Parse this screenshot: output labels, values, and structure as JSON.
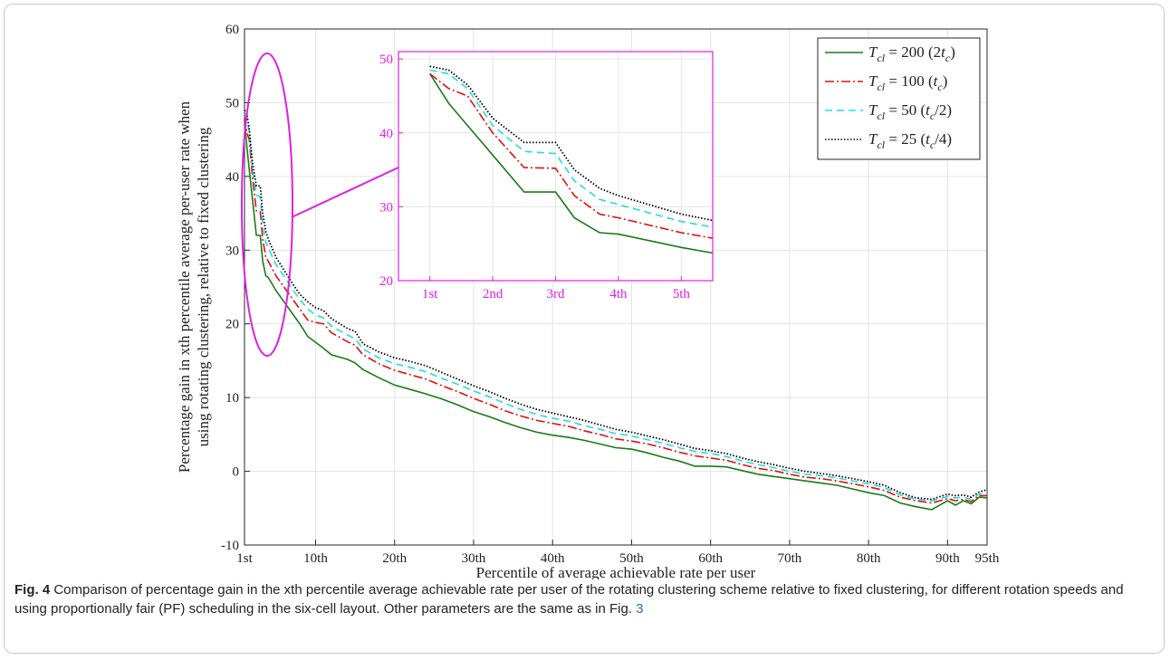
{
  "figure": {
    "caption_label": "Fig. 4",
    "caption_text": " Comparison of percentage gain in the xth percentile average achievable rate per user of the rotating clustering scheme relative to fixed clustering, for different rotation speeds and using proportionally fair (PF) scheduling in the six-cell layout. Other parameters are the same as in Fig. ",
    "caption_ref": "3"
  },
  "colors": {
    "series_200": "#1a7a1a",
    "series_100": "#e01010",
    "series_50": "#22dddd",
    "series_25": "#000000",
    "inset_axes": "#e020e0",
    "callout": "#e020e0"
  },
  "chart_data": {
    "type": "line",
    "xlabel": "Percentile of average achievable rate per user",
    "ylabel_line1": "Percentage gain in xth percentile average per-user rate when",
    "ylabel_line2": "using rotating clustering, relative to fixed clustering",
    "xlim": [
      1,
      95
    ],
    "ylim": [
      -10,
      60
    ],
    "grid": true,
    "legend_position": "top-right",
    "xticks": [
      1,
      10,
      20,
      30,
      40,
      50,
      60,
      70,
      80,
      90,
      95
    ],
    "xtick_labels": [
      "1st",
      "10th",
      "20th",
      "30th",
      "40th",
      "50th",
      "60th",
      "70th",
      "80th",
      "90th",
      "95th"
    ],
    "yticks": [
      -10,
      0,
      10,
      20,
      30,
      40,
      50,
      60
    ],
    "ytick_labels": [
      "-10",
      "0",
      "10",
      "20",
      "30",
      "40",
      "50",
      "60"
    ],
    "series": [
      {
        "id": "s200",
        "name_T": "T",
        "name_sub": "cl",
        "name_mid": " = 200 (2",
        "name_t": "t",
        "name_t_sub": "c",
        "name_end": ")",
        "color": "#1a7a1a",
        "dash": "solid",
        "x": [
          1,
          1.3,
          1.6,
          2,
          2.5,
          3,
          3.3,
          3.7,
          4,
          5,
          6,
          7,
          8,
          9,
          10,
          11,
          12,
          14,
          15,
          16,
          18,
          20,
          22,
          24,
          26,
          28,
          30,
          32,
          34,
          36,
          38,
          40,
          42,
          44,
          46,
          48,
          50,
          52,
          54,
          56,
          58,
          60,
          62,
          64,
          66,
          68,
          70,
          72,
          74,
          76,
          78,
          80,
          82,
          84,
          86,
          88,
          90,
          91,
          92,
          93,
          94,
          95
        ],
        "y": [
          48,
          44,
          41,
          37,
          32,
          32,
          28.5,
          26.5,
          26.3,
          24.5,
          23,
          21.5,
          20,
          18.3,
          17.5,
          16.7,
          15.8,
          15.2,
          14.7,
          13.8,
          12.7,
          11.7,
          11.1,
          10.5,
          9.8,
          9,
          8.1,
          7.4,
          6.6,
          5.9,
          5.3,
          4.9,
          4.6,
          4.2,
          3.7,
          3.2,
          3,
          2.5,
          1.9,
          1.4,
          0.7,
          0.7,
          0.6,
          0.1,
          -0.4,
          -0.7,
          -1,
          -1.3,
          -1.6,
          -1.9,
          -2.4,
          -2.9,
          -3.3,
          -4.3,
          -4.8,
          -5.2,
          -4,
          -4.6,
          -4,
          -4.4,
          -3.5,
          -3.6
        ]
      },
      {
        "id": "s100",
        "name_T": "T",
        "name_sub": "cl",
        "name_mid": " = 100 (",
        "name_t": "t",
        "name_t_sub": "c",
        "name_end": ")",
        "color": "#e01010",
        "dash": "10 3 2 3",
        "x": [
          1,
          1.3,
          1.6,
          2,
          2.5,
          3,
          3.3,
          3.7,
          4,
          5,
          6,
          7,
          8,
          9,
          10,
          11,
          12,
          14,
          15,
          16,
          18,
          20,
          22,
          24,
          26,
          28,
          30,
          32,
          34,
          36,
          38,
          40,
          42,
          44,
          46,
          48,
          50,
          52,
          54,
          56,
          58,
          60,
          62,
          64,
          66,
          68,
          70,
          72,
          74,
          76,
          78,
          80,
          82,
          84,
          86,
          88,
          90,
          91,
          92,
          93,
          94,
          95
        ],
        "y": [
          48,
          46,
          45,
          40,
          35.3,
          35.2,
          31.5,
          29,
          28.5,
          26.5,
          25,
          23.5,
          22,
          20.5,
          20.2,
          20,
          18.8,
          17.6,
          17.1,
          15.8,
          14.6,
          13.7,
          13.1,
          12.5,
          11.6,
          10.8,
          9.9,
          9.1,
          8.2,
          7.5,
          6.9,
          6.5,
          6.1,
          5.5,
          5,
          4.4,
          4.1,
          3.7,
          3.2,
          2.6,
          2.1,
          1.8,
          1.5,
          0.9,
          0.4,
          0.1,
          -0.4,
          -0.8,
          -1,
          -1.3,
          -1.7,
          -2.1,
          -2.6,
          -3.5,
          -4,
          -4.3,
          -3.7,
          -4,
          -3.8,
          -4.1,
          -3.3,
          -3.3
        ]
      },
      {
        "id": "s50",
        "name_T": "T",
        "name_sub": "cl",
        "name_mid": " = 50 (",
        "name_t": "t",
        "name_t_sub": "c",
        "name_end": "/2)",
        "color": "#22dddd",
        "dash": "8 5",
        "x": [
          1,
          1.3,
          1.6,
          2,
          2.5,
          3,
          3.3,
          3.7,
          4,
          5,
          6,
          7,
          8,
          9,
          10,
          11,
          12,
          14,
          15,
          16,
          18,
          20,
          22,
          24,
          26,
          28,
          30,
          32,
          34,
          36,
          38,
          40,
          42,
          44,
          46,
          48,
          50,
          52,
          54,
          56,
          58,
          60,
          62,
          64,
          66,
          68,
          70,
          72,
          74,
          76,
          78,
          80,
          82,
          84,
          86,
          88,
          90,
          91,
          92,
          93,
          94,
          95
        ],
        "y": [
          48.5,
          48,
          46,
          41,
          37.5,
          37.2,
          33.5,
          31,
          30.3,
          28,
          26.5,
          24.8,
          23.3,
          22,
          21.2,
          20.8,
          19.7,
          18.5,
          18,
          16.6,
          15.4,
          14.6,
          14.1,
          13.5,
          12.6,
          11.8,
          10.9,
          10.1,
          9.2,
          8.4,
          7.7,
          7.2,
          6.8,
          6.2,
          5.7,
          5.1,
          4.8,
          4.3,
          3.8,
          3.2,
          2.7,
          2.4,
          2,
          1.4,
          0.9,
          0.5,
          0,
          -0.4,
          -0.6,
          -0.9,
          -1.3,
          -1.7,
          -2.2,
          -3.2,
          -3.8,
          -4,
          -3.4,
          -3.6,
          -3.5,
          -3.8,
          -3.1,
          -2.9
        ]
      },
      {
        "id": "s25",
        "name_T": "T",
        "name_sub": "cl",
        "name_mid": " = 25 (",
        "name_t": "t",
        "name_t_sub": "c",
        "name_end": "/4)",
        "color": "#000000",
        "dash": "1.5 2",
        "x": [
          1,
          1.3,
          1.6,
          2,
          2.5,
          3,
          3.3,
          3.7,
          4,
          5,
          6,
          7,
          8,
          9,
          10,
          11,
          12,
          14,
          15,
          16,
          18,
          20,
          22,
          24,
          26,
          28,
          30,
          32,
          34,
          36,
          38,
          40,
          42,
          44,
          46,
          48,
          50,
          52,
          54,
          56,
          58,
          60,
          62,
          64,
          66,
          68,
          70,
          72,
          74,
          76,
          78,
          80,
          82,
          84,
          86,
          88,
          90,
          91,
          92,
          93,
          94,
          95
        ],
        "y": [
          49,
          48.5,
          46.5,
          42,
          38.7,
          38.7,
          35,
          32.5,
          31.5,
          29,
          27.3,
          25.6,
          24,
          23,
          22.2,
          21.8,
          20.7,
          19.4,
          19,
          17.3,
          16.2,
          15.4,
          14.9,
          14.3,
          13.4,
          12.5,
          11.6,
          10.8,
          9.9,
          9.1,
          8.4,
          7.9,
          7.4,
          6.9,
          6.3,
          5.7,
          5.3,
          4.8,
          4.3,
          3.7,
          3.1,
          2.8,
          2.4,
          1.8,
          1.3,
          0.9,
          0.4,
          0,
          -0.3,
          -0.6,
          -1,
          -1.4,
          -1.9,
          -2.9,
          -3.6,
          -3.8,
          -3.1,
          -3.3,
          -3.2,
          -3.5,
          -2.8,
          -2.5
        ]
      }
    ],
    "inset": {
      "xlim": [
        0.5,
        5.5
      ],
      "ylim": [
        20,
        51
      ],
      "xticks": [
        1,
        2,
        3,
        4,
        5
      ],
      "xtick_labels": [
        "1st",
        "2nd",
        "3rd",
        "4th",
        "5th"
      ],
      "yticks": [
        20,
        30,
        40,
        50
      ],
      "ytick_labels": [
        "20",
        "30",
        "40",
        "50"
      ]
    }
  }
}
